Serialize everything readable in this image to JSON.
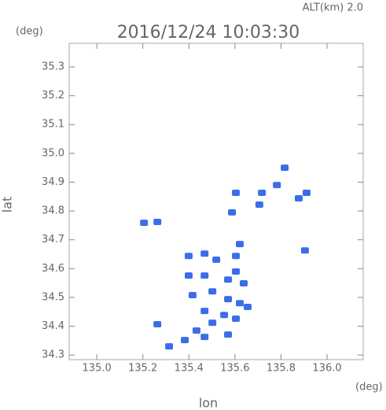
{
  "chart_data": {
    "type": "scatter",
    "title": "2016/12/24 10:03:30",
    "subtitle": "ALT(km) 2.0",
    "x_label": "lon",
    "y_label": "lat",
    "x_unit": "(deg)",
    "y_unit": "(deg)",
    "xlim": [
      134.88,
      136.157
    ],
    "ylim": [
      34.284,
      35.382
    ],
    "xticks": [
      {
        "value": 135,
        "label": "135.0"
      },
      135.2,
      135.4,
      135.6,
      135.8,
      {
        "value": 136,
        "label": "136.0"
      }
    ],
    "yticks": [
      34.3,
      34.4,
      34.5,
      34.6,
      34.7,
      34.8,
      34.9,
      {
        "value": 35,
        "label": "35.0"
      },
      35.1,
      35.2,
      35.3
    ],
    "series": [
      {
        "color": "#3a6ee8",
        "x": [
          135.816,
          135.782,
          135.911,
          135.877,
          135.717,
          135.604,
          135.587,
          135.706,
          135.205,
          135.263,
          135.904,
          135.399,
          135.468,
          135.519,
          135.604,
          135.621,
          135.399,
          135.468,
          135.57,
          135.604,
          135.502,
          135.57,
          135.621,
          135.553,
          135.604,
          135.502,
          135.468,
          135.416,
          135.263,
          135.382,
          135.468,
          135.57,
          135.314,
          135.433,
          135.638,
          135.655
        ],
        "values": [
          34.95,
          34.89,
          34.863,
          34.844,
          34.863,
          34.863,
          34.795,
          34.822,
          34.759,
          34.762,
          34.663,
          34.644,
          34.652,
          34.631,
          34.644,
          34.685,
          34.576,
          34.576,
          34.562,
          34.59,
          34.521,
          34.494,
          34.48,
          34.439,
          34.426,
          34.412,
          34.453,
          34.508,
          34.407,
          34.352,
          34.363,
          34.371,
          34.33,
          34.385,
          34.549,
          34.467
        ]
      }
    ]
  }
}
